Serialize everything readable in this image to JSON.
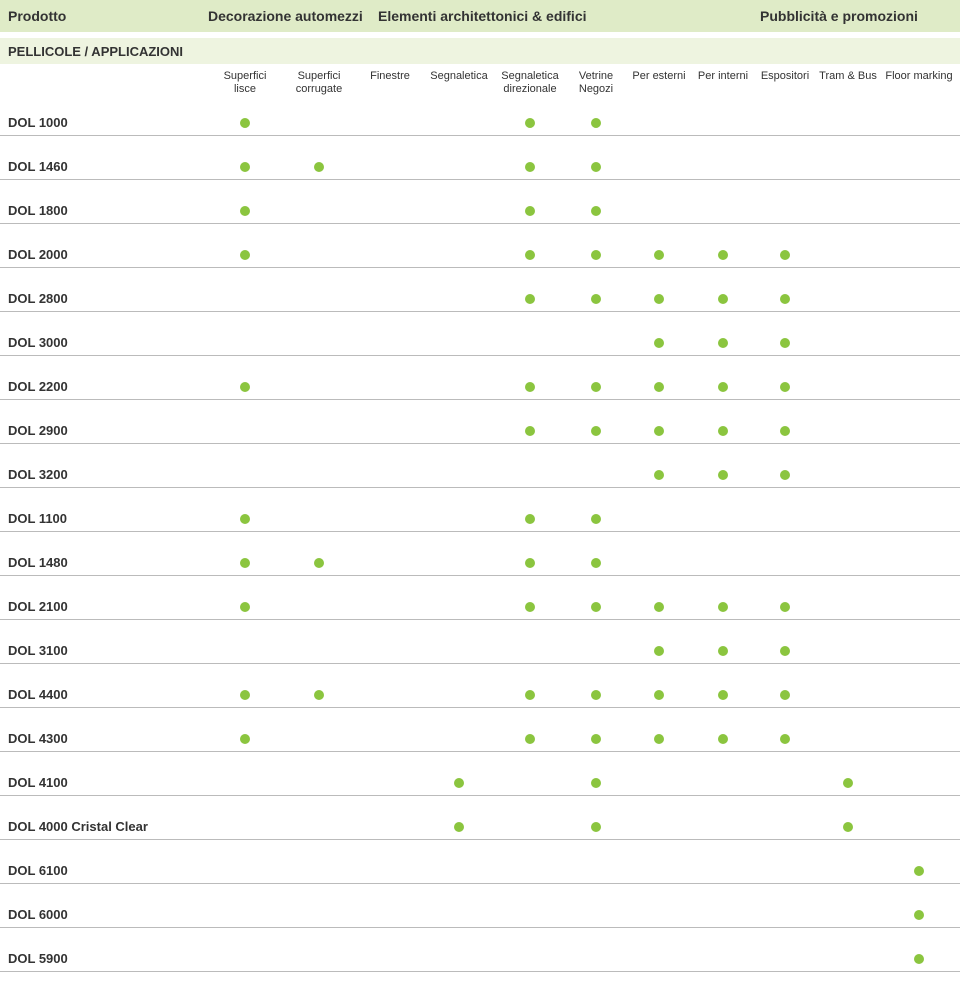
{
  "colors": {
    "header_bg": "#dfebc7",
    "section_bg": "#eef4e0",
    "dot": "#8bc53f",
    "rule": "#bbbbbb",
    "text": "#333333",
    "page_bg": "#ffffff"
  },
  "top_header": {
    "product": "Prodotto",
    "groups": [
      "Decorazione automezzi",
      "Elementi architettonici & edifici",
      "Pubblicità e promozioni"
    ]
  },
  "section_title": "PELLICOLE / APPLICAZIONI",
  "columns": [
    {
      "l1": "Superfici",
      "l2": "lisce"
    },
    {
      "l1": "Superfici",
      "l2": "corrugate"
    },
    {
      "l1": "Finestre",
      "l2": ""
    },
    {
      "l1": "Segnaletica",
      "l2": ""
    },
    {
      "l1": "Segnaletica",
      "l2": "direzionale"
    },
    {
      "l1": "Vetrine",
      "l2": "Negozi"
    },
    {
      "l1": "Per esterni",
      "l2": ""
    },
    {
      "l1": "Per interni",
      "l2": ""
    },
    {
      "l1": "Espositori",
      "l2": ""
    },
    {
      "l1": "Tram & Bus",
      "l2": ""
    },
    {
      "l1": "Floor marking",
      "l2": ""
    }
  ],
  "rows": [
    {
      "name": "DOL 1000",
      "dots": [
        1,
        0,
        0,
        0,
        1,
        1,
        0,
        0,
        0,
        0,
        0
      ]
    },
    {
      "name": "DOL 1460",
      "dots": [
        1,
        1,
        0,
        0,
        1,
        1,
        0,
        0,
        0,
        0,
        0
      ]
    },
    {
      "name": "DOL 1800",
      "dots": [
        1,
        0,
        0,
        0,
        1,
        1,
        0,
        0,
        0,
        0,
        0
      ]
    },
    {
      "name": "DOL 2000",
      "dots": [
        1,
        0,
        0,
        0,
        1,
        1,
        1,
        1,
        1,
        0,
        0
      ]
    },
    {
      "name": "DOL 2800",
      "dots": [
        0,
        0,
        0,
        0,
        1,
        1,
        1,
        1,
        1,
        0,
        0
      ]
    },
    {
      "name": "DOL 3000",
      "dots": [
        0,
        0,
        0,
        0,
        0,
        0,
        1,
        1,
        1,
        0,
        0
      ]
    },
    {
      "name": "DOL 2200",
      "dots": [
        1,
        0,
        0,
        0,
        1,
        1,
        1,
        1,
        1,
        0,
        0
      ]
    },
    {
      "name": "DOL 2900",
      "dots": [
        0,
        0,
        0,
        0,
        1,
        1,
        1,
        1,
        1,
        0,
        0
      ]
    },
    {
      "name": "DOL 3200",
      "dots": [
        0,
        0,
        0,
        0,
        0,
        0,
        1,
        1,
        1,
        0,
        0
      ]
    },
    {
      "name": "DOL 1100",
      "dots": [
        1,
        0,
        0,
        0,
        1,
        1,
        0,
        0,
        0,
        0,
        0
      ]
    },
    {
      "name": "DOL 1480",
      "dots": [
        1,
        1,
        0,
        0,
        1,
        1,
        0,
        0,
        0,
        0,
        0
      ]
    },
    {
      "name": "DOL 2100",
      "dots": [
        1,
        0,
        0,
        0,
        1,
        1,
        1,
        1,
        1,
        0,
        0
      ]
    },
    {
      "name": "DOL 3100",
      "dots": [
        0,
        0,
        0,
        0,
        0,
        0,
        1,
        1,
        1,
        0,
        0
      ]
    },
    {
      "name": "DOL 4400",
      "dots": [
        1,
        1,
        0,
        0,
        1,
        1,
        1,
        1,
        1,
        0,
        0
      ]
    },
    {
      "name": "DOL 4300",
      "dots": [
        1,
        0,
        0,
        0,
        1,
        1,
        1,
        1,
        1,
        0,
        0
      ]
    },
    {
      "name": "DOL 4100",
      "dots": [
        0,
        0,
        0,
        1,
        0,
        1,
        0,
        0,
        0,
        1,
        0
      ]
    },
    {
      "name": "DOL 4000 Cristal Clear",
      "dots": [
        0,
        0,
        0,
        1,
        0,
        1,
        0,
        0,
        0,
        1,
        0
      ]
    },
    {
      "name": "DOL 6100",
      "dots": [
        0,
        0,
        0,
        0,
        0,
        0,
        0,
        0,
        0,
        0,
        1
      ]
    },
    {
      "name": "DOL 6000",
      "dots": [
        0,
        0,
        0,
        0,
        0,
        0,
        0,
        0,
        0,
        0,
        1
      ]
    },
    {
      "name": "DOL 5900",
      "dots": [
        0,
        0,
        0,
        0,
        0,
        0,
        0,
        0,
        0,
        0,
        1
      ]
    }
  ]
}
